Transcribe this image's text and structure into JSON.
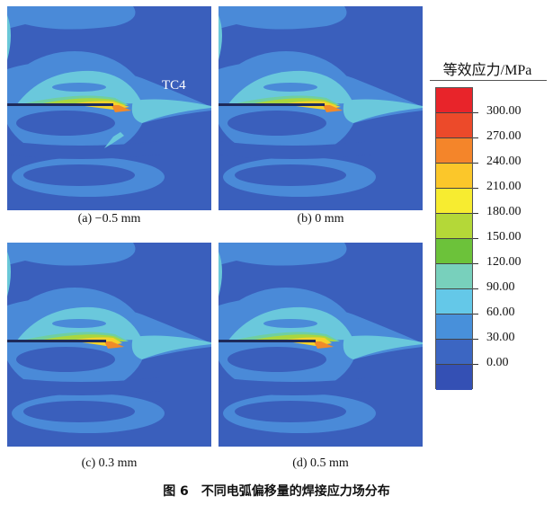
{
  "panels": [
    {
      "caption": "(a) −0.5 mm",
      "label": "TC4"
    },
    {
      "caption": "(b) 0 mm"
    },
    {
      "caption": "(c) 0.3 mm"
    },
    {
      "caption": "(d) 0.5 mm"
    }
  ],
  "legend": {
    "title": "等效应力/MPa",
    "unit": "MPa",
    "ticks": [
      "300.00",
      "270.00",
      "240.00",
      "210.00",
      "180.00",
      "150.00",
      "120.00",
      "90.00",
      "60.00",
      "30.00",
      "0.00"
    ],
    "colors": [
      "#e8242a",
      "#ec4a2a",
      "#f4852a",
      "#fbc72a",
      "#f7ec30",
      "#b4d838",
      "#6cc23a",
      "#78d0bc",
      "#64c8e8",
      "#4890da",
      "#3c66c2",
      "#3450b4"
    ]
  },
  "figure_caption": "图 6　不同电弧偏移量的焊接应力场分布"
}
